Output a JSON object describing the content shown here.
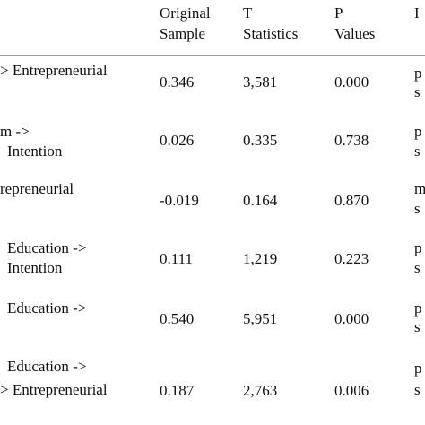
{
  "table": {
    "header": {
      "original_sample": [
        "Original",
        "Sample"
      ],
      "t_statistics": [
        "T",
        "Statistics"
      ],
      "p_values": [
        "P",
        "Values"
      ],
      "interpretation": [
        "I"
      ]
    },
    "rows": [
      {
        "label": [
          "> Entrepreneurial"
        ],
        "original_sample": "0.346",
        "t_statistics": "3,581",
        "p_values": "0.000",
        "interpretation": [
          "p",
          "s"
        ]
      },
      {
        "label": [
          "m ->",
          "Intention"
        ],
        "original_sample": "0.026",
        "t_statistics": "0.335",
        "p_values": "0.738",
        "interpretation": [
          "p",
          "s"
        ]
      },
      {
        "label": [
          "repreneurial"
        ],
        "original_sample": "-0.019",
        "t_statistics": "0.164",
        "p_values": "0.870",
        "interpretation": [
          "m",
          "s"
        ]
      },
      {
        "label": [
          "Education ->",
          "Intention"
        ],
        "original_sample": "0.111",
        "t_statistics": "1,219",
        "p_values": "0.223",
        "interpretation": [
          "p",
          "s"
        ]
      },
      {
        "label": [
          "Education ->"
        ],
        "original_sample": "0.540",
        "t_statistics": "5,951",
        "p_values": "0.000",
        "interpretation": [
          "p",
          "s"
        ]
      },
      {
        "label": [
          "Education ->",
          "> Entrepreneurial"
        ],
        "original_sample": "0.187",
        "t_statistics": "2,763",
        "p_values": "0.006",
        "interpretation": [
          "p",
          "s"
        ]
      }
    ]
  }
}
